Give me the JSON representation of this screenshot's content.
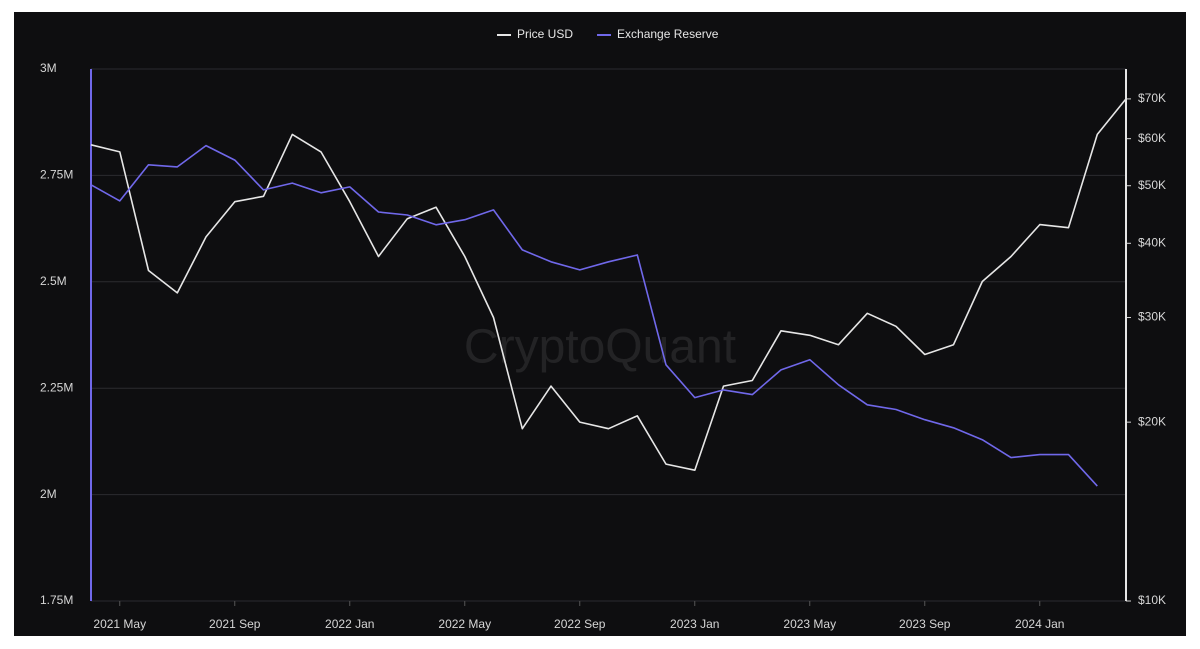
{
  "chart_data": {
    "type": "line",
    "watermark": "CryptoQuant",
    "x": [
      "2021-04",
      "2021-05",
      "2021-06",
      "2021-07",
      "2021-08",
      "2021-09",
      "2021-10",
      "2021-11",
      "2021-12",
      "2022-01",
      "2022-02",
      "2022-03",
      "2022-04",
      "2022-05",
      "2022-06",
      "2022-07",
      "2022-08",
      "2022-09",
      "2022-10",
      "2022-11",
      "2022-12",
      "2023-01",
      "2023-02",
      "2023-03",
      "2023-04",
      "2023-05",
      "2023-06",
      "2023-07",
      "2023-08",
      "2023-09",
      "2023-10",
      "2023-11",
      "2023-12",
      "2024-01",
      "2024-02",
      "2024-03",
      "2024-04"
    ],
    "series": [
      {
        "name": "Price USD",
        "color": "#e6e6e6",
        "axis": "y2",
        "values": [
          58600,
          57000,
          36000,
          33000,
          41000,
          47000,
          48000,
          61000,
          57000,
          47000,
          38000,
          44000,
          46000,
          38000,
          30000,
          19500,
          23000,
          20000,
          19500,
          20500,
          17000,
          16600,
          23000,
          23500,
          28500,
          28000,
          27000,
          30500,
          29000,
          26000,
          27000,
          34500,
          38000,
          43000,
          42500,
          61000,
          70000
        ]
      },
      {
        "name": "Exchange Reserve",
        "color": "#7068ea",
        "values": [
          2728000,
          2690000,
          2775000,
          2770000,
          2820000,
          2786000,
          2716000,
          2732000,
          2709000,
          2723000,
          2664000,
          2657000,
          2634000,
          2646000,
          2669000,
          2575000,
          2547000,
          2528000,
          2547000,
          2563000,
          2305000,
          2228000,
          2246000,
          2235000,
          2293000,
          2317000,
          2258000,
          2211000,
          2200000,
          2176000,
          2157000,
          2129000,
          2087000,
          2094000,
          2094000,
          2020000,
          null
        ]
      }
    ],
    "xlim": [
      "2021-04",
      "2024-04"
    ],
    "xticks": [
      {
        "value": "2021-05",
        "label": "2021 May"
      },
      {
        "value": "2021-09",
        "label": "2021 Sep"
      },
      {
        "value": "2022-01",
        "label": "2022 Jan"
      },
      {
        "value": "2022-05",
        "label": "2022 May"
      },
      {
        "value": "2022-09",
        "label": "2022 Sep"
      },
      {
        "value": "2023-01",
        "label": "2023 Jan"
      },
      {
        "value": "2023-05",
        "label": "2023 May"
      },
      {
        "value": "2023-09",
        "label": "2023 Sep"
      },
      {
        "value": "2024-01",
        "label": "2024 Jan"
      }
    ],
    "ylim": [
      1750000,
      3000000
    ],
    "yticks": [
      {
        "value": 1750000,
        "label": "1.75M"
      },
      {
        "value": 2000000,
        "label": "2M"
      },
      {
        "value": 2250000,
        "label": "2.25M"
      },
      {
        "value": 2500000,
        "label": "2.5M"
      },
      {
        "value": 2750000,
        "label": "2.75M"
      },
      {
        "value": 3000000,
        "label": "3M"
      }
    ],
    "y2lim": [
      10000,
      78600
    ],
    "y2log": true,
    "y2ticks": [
      {
        "value": 10000,
        "label": "$10K"
      },
      {
        "value": 20000,
        "label": "$20K"
      },
      {
        "value": 30000,
        "label": "$30K"
      },
      {
        "value": 40000,
        "label": "$40K"
      },
      {
        "value": 50000,
        "label": "$50K"
      },
      {
        "value": 60000,
        "label": "$60K"
      },
      {
        "value": 70000,
        "label": "$70K"
      }
    ],
    "grid": true,
    "legend": "top",
    "background": "#0e0e10"
  }
}
